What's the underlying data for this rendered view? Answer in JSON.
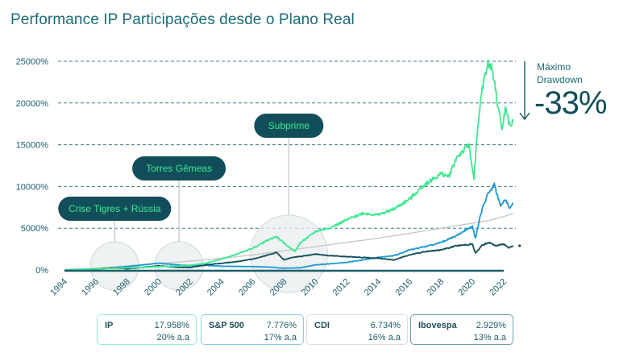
{
  "title": "Performance IP Participações desde o Plano Real",
  "drawdown": {
    "label_line1": "Máximo",
    "label_line2": "Drawdown",
    "value": "-33%",
    "icon": "arrow-down-icon"
  },
  "legend_cards": [
    {
      "name": "IP",
      "total": "17.958%",
      "annual": "20% a.a",
      "color": "#3be88f"
    },
    {
      "name": "S&P 500",
      "total": "7.776%",
      "annual": "17% a.a",
      "color": "#1e9ad6"
    },
    {
      "name": "CDI",
      "total": "6.734%",
      "annual": "16% a.a",
      "color": "#c8c8c8"
    },
    {
      "name": "Ibovespa",
      "total": "2.929%",
      "annual": "13% a.a",
      "color": "#124e5a"
    }
  ],
  "chart_data": {
    "type": "line",
    "title": "Performance IP Participações desde o Plano Real",
    "xlabel": "",
    "ylabel": "",
    "xlim": [
      1994,
      2022.7
    ],
    "ylim": [
      0,
      25000
    ],
    "grid": true,
    "yticks": [
      "0%",
      "5000%",
      "10000%",
      "15000%",
      "20000%",
      "25000%"
    ],
    "ytick_values": [
      0,
      5000,
      10000,
      15000,
      20000,
      25000
    ],
    "xticks": [
      "1994",
      "1996",
      "1998",
      "2000",
      "2002",
      "2004",
      "2006",
      "2008",
      "2010",
      "2012",
      "2014",
      "2016",
      "2018",
      "2020",
      "2022"
    ],
    "xtick_values": [
      1994,
      1996,
      1998,
      2000,
      2002,
      2004,
      2006,
      2008,
      2010,
      2012,
      2014,
      2016,
      2018,
      2020,
      2022
    ],
    "series": [
      {
        "name": "IP",
        "color": "#3be88f",
        "x": [
          1994,
          1995,
          1996,
          1997,
          1998,
          1999,
          2000,
          2001,
          2002,
          2003,
          2004,
          2005,
          2006,
          2007,
          2007.5,
          2008,
          2008.7,
          2009,
          2010,
          2011,
          2012,
          2013,
          2014,
          2015,
          2016,
          2017,
          2018,
          2018.5,
          2019,
          2019.8,
          2020.1,
          2020.3,
          2020.6,
          2021,
          2021.3,
          2021.6,
          2021.9,
          2022.1,
          2022.4,
          2022.6
        ],
        "values": [
          0,
          50,
          120,
          200,
          260,
          300,
          400,
          450,
          550,
          800,
          1300,
          1900,
          2600,
          3600,
          4000,
          3200,
          2200,
          3200,
          4600,
          5100,
          6000,
          6800,
          6600,
          7300,
          8500,
          10300,
          11500,
          11200,
          13500,
          15000,
          10800,
          16000,
          21500,
          24800,
          24000,
          20000,
          16800,
          19400,
          17200,
          17800
        ]
      },
      {
        "name": "S&P 500",
        "color": "#1e9ad6",
        "x": [
          1994,
          1996,
          1998,
          2000,
          2001,
          2002,
          2003,
          2004,
          2006,
          2007,
          2008,
          2009,
          2010,
          2011,
          2012,
          2013,
          2014,
          2015,
          2016,
          2017,
          2018,
          2019,
          2020,
          2020.2,
          2020.5,
          2021,
          2021.4,
          2021.8,
          2022.1,
          2022.4,
          2022.6
        ],
        "values": [
          0,
          80,
          400,
          800,
          650,
          500,
          550,
          450,
          400,
          350,
          200,
          250,
          600,
          750,
          900,
          1200,
          1500,
          1700,
          2400,
          2800,
          3300,
          4100,
          5300,
          3800,
          6500,
          9200,
          10200,
          7600,
          8400,
          7400,
          7900
        ]
      },
      {
        "name": "CDI",
        "color": "#c8c8c8",
        "x": [
          1994,
          1996,
          1998,
          2000,
          2002,
          2004,
          2006,
          2008,
          2010,
          2012,
          2014,
          2016,
          2018,
          2020,
          2021,
          2022,
          2022.6
        ],
        "values": [
          0,
          200,
          500,
          800,
          1050,
          1400,
          1800,
          2300,
          2800,
          3300,
          3800,
          4400,
          5000,
          5600,
          5900,
          6400,
          6734
        ]
      },
      {
        "name": "Ibovespa",
        "color": "#124e5a",
        "x": [
          1994,
          1995,
          1996,
          1997,
          1998,
          1999,
          2000,
          2001,
          2002,
          2003,
          2004,
          2005,
          2006,
          2007,
          2007.5,
          2008,
          2008.5,
          2009,
          2010,
          2011,
          2012,
          2013,
          2014,
          2015,
          2016,
          2017,
          2018,
          2019,
          2020,
          2020.2,
          2020.6,
          2021,
          2021.5,
          2022,
          2022.3,
          2022.6
        ],
        "values": [
          0,
          50,
          120,
          250,
          150,
          300,
          500,
          350,
          300,
          600,
          800,
          1000,
          1300,
          1800,
          2100,
          1200,
          1500,
          1600,
          1900,
          1700,
          1600,
          1500,
          1400,
          1200,
          1800,
          2200,
          2400,
          2900,
          3100,
          2000,
          2900,
          3300,
          2900,
          3100,
          2700,
          2900
        ]
      }
    ],
    "annotations": [
      {
        "label": "Crise Tigres + Rússia",
        "x": 1997.2
      },
      {
        "label": "Torres Gêmeas",
        "x": 2001.3
      },
      {
        "label": "Subprime",
        "x": 2008.3
      }
    ]
  }
}
